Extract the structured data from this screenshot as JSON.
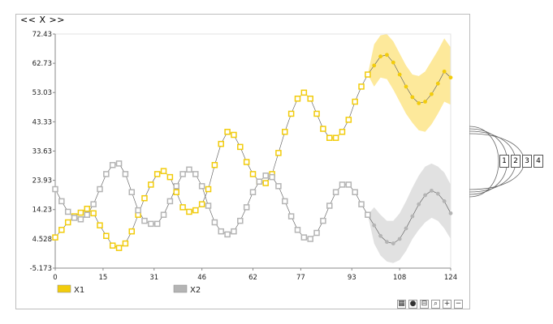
{
  "nav": {
    "prev": "<<",
    "title": "X",
    "next": ">>"
  },
  "toolbar": [
    {
      "name": "grid-tool-button",
      "glyph": "▦"
    },
    {
      "name": "dot-tool-button",
      "glyph": "●"
    },
    {
      "name": "band-tool-button",
      "glyph": "⊟"
    },
    {
      "name": "zoom-tool-button",
      "glyph": "⌕"
    },
    {
      "name": "zoom-in-button",
      "glyph": "+"
    },
    {
      "name": "zoom-out-button",
      "glyph": "−"
    }
  ],
  "lanes": [
    "1",
    "2",
    "3",
    "4"
  ],
  "chart_data": {
    "type": "line",
    "title": "",
    "xlabel": "",
    "ylabel": "",
    "xlim": [
      0,
      124
    ],
    "ylim": [
      -5.173,
      72.43
    ],
    "x_ticks": [
      "0",
      "15",
      "31",
      "46",
      "62",
      "77",
      "93",
      "108",
      "124"
    ],
    "y_ticks": [
      "72.43",
      "62.73",
      "53.03",
      "43.33",
      "33.63",
      "23.93",
      "14.23",
      "4.528",
      "-5.173"
    ],
    "legend_position": "bottom-left",
    "colors": {
      "X1": "#f2cc0c",
      "X2": "#b4b4b4",
      "X1_band": "#fde58a",
      "X2_band": "#dcdcdc"
    },
    "series": [
      {
        "name": "X1",
        "x": [
          0,
          2,
          4,
          6,
          8,
          10,
          12,
          14,
          16,
          18,
          20,
          22,
          24,
          26,
          28,
          30,
          32,
          34,
          36,
          38,
          40,
          42,
          44,
          46,
          48,
          50,
          52,
          54,
          56,
          58,
          60,
          62,
          64,
          66,
          68,
          70,
          72,
          74,
          76,
          78,
          80,
          82,
          84,
          86,
          88,
          90,
          92,
          94,
          96,
          98
        ],
        "y": [
          5.0,
          7.5,
          10.0,
          12.0,
          13.2,
          14.5,
          13.0,
          9.0,
          5.5,
          2.3,
          1.5,
          3.0,
          7.0,
          12.5,
          18.0,
          22.5,
          26.0,
          27.0,
          25.0,
          20.0,
          15.0,
          13.5,
          14.0,
          16.0,
          21.0,
          29.0,
          36.0,
          40.0,
          39.0,
          35.0,
          30.0,
          26.0,
          23.5,
          23.0,
          26.0,
          33.0,
          40.0,
          46.0,
          51.0,
          53.0,
          51.0,
          46.0,
          41.0,
          38.0,
          38.0,
          40.0,
          44.0,
          50.0,
          55.0,
          59.0
        ],
        "forecast_x": [
          100,
          102,
          104,
          106,
          108,
          110,
          112,
          114,
          116,
          118,
          120,
          122,
          124
        ],
        "forecast_y": [
          62.0,
          65.0,
          65.5,
          63.0,
          59.0,
          55.0,
          51.5,
          49.5,
          50.0,
          52.5,
          56.0,
          60.0,
          58.0
        ],
        "forecast_upper": [
          69.0,
          72.0,
          72.4,
          70.0,
          66.0,
          62.0,
          59.0,
          58.5,
          60.0,
          63.5,
          67.0,
          71.0,
          68.0
        ],
        "forecast_lower": [
          55.0,
          58.0,
          57.5,
          54.0,
          50.0,
          46.0,
          43.0,
          40.5,
          40.0,
          42.5,
          46.0,
          50.0,
          49.0
        ]
      },
      {
        "name": "X2",
        "x": [
          0,
          2,
          4,
          6,
          8,
          10,
          12,
          14,
          16,
          18,
          20,
          22,
          24,
          26,
          28,
          30,
          32,
          34,
          36,
          38,
          40,
          42,
          44,
          46,
          48,
          50,
          52,
          54,
          56,
          58,
          60,
          62,
          64,
          66,
          68,
          70,
          72,
          74,
          76,
          78,
          80,
          82,
          84,
          86,
          88,
          90,
          92,
          94,
          96,
          98
        ],
        "y": [
          21.0,
          17.0,
          13.5,
          11.5,
          11.0,
          12.5,
          16.0,
          21.0,
          26.0,
          29.0,
          29.5,
          26.0,
          20.0,
          14.0,
          10.5,
          9.5,
          9.5,
          12.5,
          17.0,
          22.0,
          26.0,
          27.5,
          26.0,
          22.0,
          15.5,
          10.0,
          7.0,
          6.0,
          7.0,
          10.5,
          15.0,
          20.0,
          23.5,
          25.5,
          25.0,
          22.0,
          17.0,
          12.0,
          7.5,
          5.0,
          4.5,
          6.5,
          10.5,
          15.5,
          20.0,
          22.5,
          22.5,
          20.0,
          16.0,
          12.5
        ],
        "forecast_x": [
          100,
          102,
          104,
          106,
          108,
          110,
          112,
          114,
          116,
          118,
          120,
          122,
          124
        ],
        "forecast_y": [
          9.0,
          5.5,
          3.5,
          3.0,
          4.5,
          8.0,
          12.0,
          16.0,
          19.0,
          20.5,
          19.5,
          17.0,
          13.0
        ],
        "forecast_upper": [
          15.0,
          12.5,
          10.5,
          10.5,
          13.0,
          17.0,
          21.5,
          25.5,
          28.5,
          29.5,
          28.5,
          26.5,
          22.5
        ],
        "forecast_lower": [
          3.0,
          -1.0,
          -3.0,
          -3.5,
          -2.5,
          0.5,
          4.5,
          7.5,
          10.0,
          11.5,
          10.5,
          8.0,
          4.5
        ]
      }
    ]
  }
}
